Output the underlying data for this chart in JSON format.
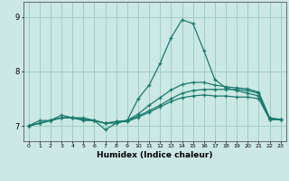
{
  "x": [
    0,
    1,
    2,
    3,
    4,
    5,
    6,
    7,
    8,
    9,
    10,
    11,
    12,
    13,
    14,
    15,
    16,
    17,
    18,
    19,
    20,
    21,
    22,
    23
  ],
  "line1": [
    7.0,
    7.1,
    7.1,
    7.2,
    7.15,
    7.15,
    7.1,
    6.93,
    7.05,
    7.1,
    7.5,
    7.75,
    8.15,
    8.62,
    8.95,
    8.88,
    8.38,
    7.85,
    7.7,
    7.65,
    7.6,
    7.55,
    7.12,
    7.12
  ],
  "line2": [
    7.0,
    7.05,
    7.1,
    7.15,
    7.15,
    7.12,
    7.1,
    7.05,
    7.05,
    7.1,
    7.18,
    7.28,
    7.38,
    7.5,
    7.6,
    7.65,
    7.67,
    7.67,
    7.67,
    7.67,
    7.65,
    7.6,
    7.12,
    7.12
  ],
  "line3": [
    7.0,
    7.05,
    7.1,
    7.15,
    7.15,
    7.12,
    7.1,
    7.05,
    7.08,
    7.1,
    7.22,
    7.38,
    7.52,
    7.66,
    7.76,
    7.8,
    7.8,
    7.75,
    7.72,
    7.7,
    7.68,
    7.62,
    7.15,
    7.12
  ],
  "line4": [
    7.0,
    7.05,
    7.1,
    7.15,
    7.15,
    7.1,
    7.1,
    7.05,
    7.08,
    7.08,
    7.16,
    7.25,
    7.35,
    7.45,
    7.52,
    7.55,
    7.57,
    7.55,
    7.55,
    7.53,
    7.53,
    7.5,
    7.12,
    7.12
  ],
  "color": "#1a7a6e",
  "bg_color": "#cce8e4",
  "grid_color": "#9fcdc7",
  "xlabel": "Humidex (Indice chaleur)",
  "ylim_min": 6.72,
  "ylim_max": 9.28,
  "xlim_min": -0.5,
  "xlim_max": 23.5,
  "yticks": [
    7,
    8,
    9
  ],
  "xticks": [
    0,
    1,
    2,
    3,
    4,
    5,
    6,
    7,
    8,
    9,
    10,
    11,
    12,
    13,
    14,
    15,
    16,
    17,
    18,
    19,
    20,
    21,
    22,
    23
  ]
}
